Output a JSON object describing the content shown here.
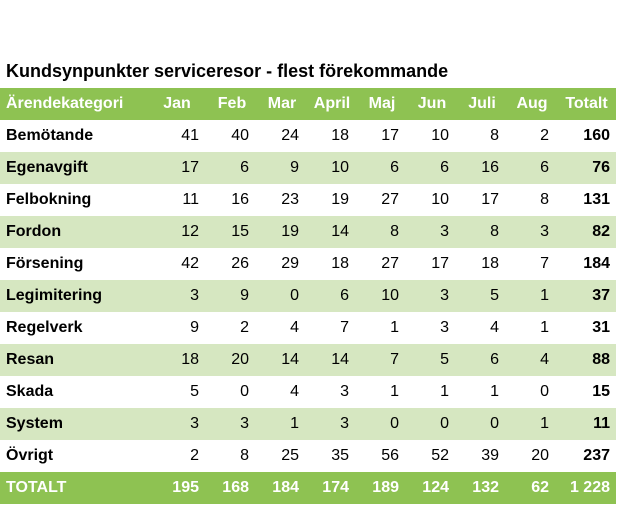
{
  "title": "Kundsynpunkter serviceresor - flest förekommande",
  "header": {
    "category": "Ärendekategori",
    "months": [
      "Jan",
      "Feb",
      "Mar",
      "April",
      "Maj",
      "Jun",
      "Juli",
      "Aug"
    ],
    "total": "Totalt"
  },
  "rows": [
    {
      "category": "Bemötande",
      "values": [
        "41",
        "40",
        "24",
        "18",
        "17",
        "10",
        "8",
        "2"
      ],
      "total": "160"
    },
    {
      "category": "Egenavgift",
      "values": [
        "17",
        "6",
        "9",
        "10",
        "6",
        "6",
        "16",
        "6"
      ],
      "total": "76"
    },
    {
      "category": "Felbokning",
      "values": [
        "11",
        "16",
        "23",
        "19",
        "27",
        "10",
        "17",
        "8"
      ],
      "total": "131"
    },
    {
      "category": "Fordon",
      "values": [
        "12",
        "15",
        "19",
        "14",
        "8",
        "3",
        "8",
        "3"
      ],
      "total": "82"
    },
    {
      "category": "Försening",
      "values": [
        "42",
        "26",
        "29",
        "18",
        "27",
        "17",
        "18",
        "7"
      ],
      "total": "184"
    },
    {
      "category": "Legimitering",
      "values": [
        "3",
        "9",
        "0",
        "6",
        "10",
        "3",
        "5",
        "1"
      ],
      "total": "37"
    },
    {
      "category": "Regelverk",
      "values": [
        "9",
        "2",
        "4",
        "7",
        "1",
        "3",
        "4",
        "1"
      ],
      "total": "31"
    },
    {
      "category": "Resan",
      "values": [
        "18",
        "20",
        "14",
        "14",
        "7",
        "5",
        "6",
        "4"
      ],
      "total": "88"
    },
    {
      "category": "Skada",
      "values": [
        "5",
        "0",
        "4",
        "3",
        "1",
        "1",
        "1",
        "0"
      ],
      "total": "15"
    },
    {
      "category": "System",
      "values": [
        "3",
        "3",
        "1",
        "3",
        "0",
        "0",
        "0",
        "1"
      ],
      "total": "11"
    },
    {
      "category": "Övrigt",
      "values": [
        "2",
        "8",
        "25",
        "35",
        "56",
        "52",
        "39",
        "20"
      ],
      "total": "237"
    }
  ],
  "totals": {
    "label": "TOTALT",
    "values": [
      "195",
      "168",
      "184",
      "174",
      "189",
      "124",
      "132",
      "62"
    ],
    "total": "1 228"
  },
  "colors": {
    "header_green": "#8ec252",
    "band_green": "#d6e7c1"
  }
}
